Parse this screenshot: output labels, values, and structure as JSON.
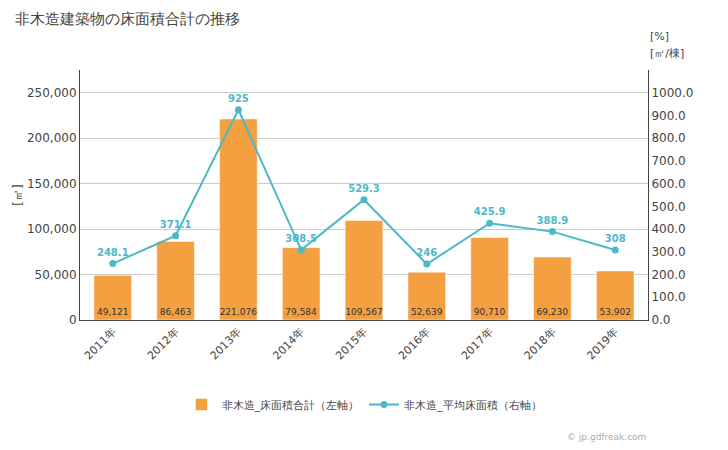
{
  "chart_data": {
    "type": "bar",
    "title": "非木造建築物の床面積合計の推移",
    "categories": [
      "2011年",
      "2012年",
      "2013年",
      "2014年",
      "2015年",
      "2016年",
      "2017年",
      "2018年",
      "2019年"
    ],
    "series": [
      {
        "name": "非木造_床面積合計（左軸）",
        "type": "bar",
        "color": "#f5a040",
        "values": [
          49121,
          86463,
          221076,
          79584,
          109567,
          52639,
          90710,
          69230,
          53902
        ],
        "value_labels": [
          "49,121",
          "86,463",
          "221,076",
          "79,584",
          "109,567",
          "52,639",
          "90,710",
          "69,230",
          "53,902"
        ]
      },
      {
        "name": "非木造_平均床面積（右軸）",
        "type": "line",
        "color": "#4db8c8",
        "marker": "circle",
        "axis": "y2",
        "values": [
          248.1,
          371.1,
          925,
          308.5,
          529.3,
          246,
          425.9,
          388.9,
          308
        ]
      }
    ],
    "ylabel": "[㎡]",
    "annotations": [
      "[㎡/棟]",
      "[%]",
      "© jp.gdfreak.com"
    ],
    "ylim": [
      0,
      275000
    ],
    "yticks": [
      {
        "value": 0,
        "label": "0"
      },
      {
        "value": 50000,
        "label": "50,000"
      },
      {
        "value": 100000,
        "label": "100,000"
      },
      {
        "value": 150000,
        "label": "150,000"
      },
      {
        "value": 200000,
        "label": "200,000"
      },
      {
        "value": 250000,
        "label": "250,000"
      }
    ],
    "y2lim": [
      0,
      1100
    ],
    "y2ticks": [
      {
        "value": 0,
        "label": "0.0"
      },
      {
        "value": 100,
        "label": "100.0"
      },
      {
        "value": 200,
        "label": "200.0"
      },
      {
        "value": 300,
        "label": "300.0"
      },
      {
        "value": 400,
        "label": "400.0"
      },
      {
        "value": 500,
        "label": "500.0"
      },
      {
        "value": 600,
        "label": "600.0"
      },
      {
        "value": 700,
        "label": "700.0"
      },
      {
        "value": 800,
        "label": "800.0"
      },
      {
        "value": 900,
        "label": "900.0"
      },
      {
        "value": 1000,
        "label": "1000.0"
      }
    ],
    "grid": true,
    "legend": "bottom",
    "data_labels": true
  }
}
